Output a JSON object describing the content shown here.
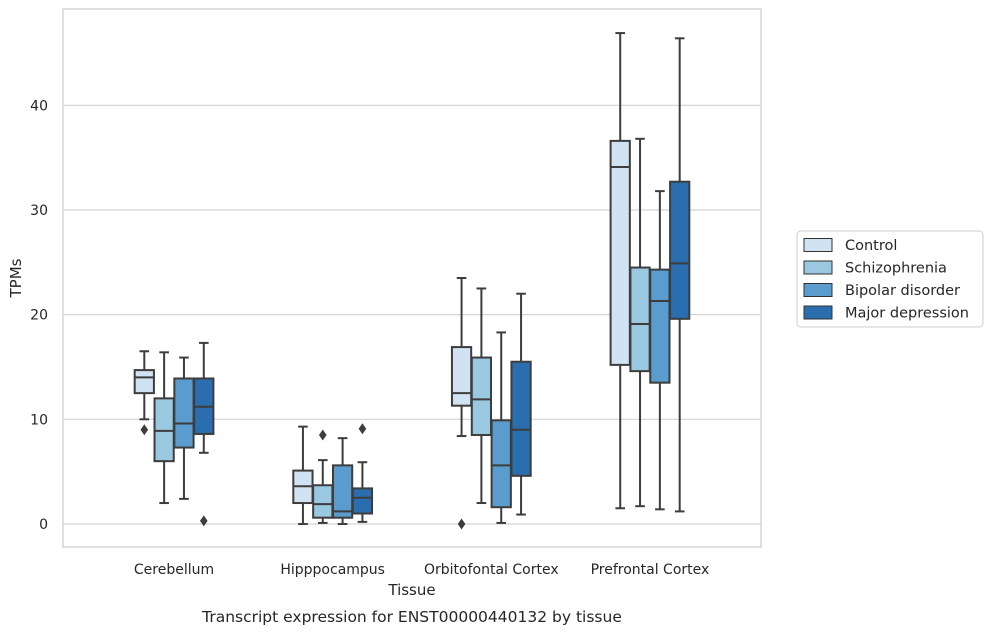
{
  "chart_data": {
    "type": "box",
    "caption": "Transcript expression for ENST00000440132 by tissue",
    "xlabel": "Tissue",
    "ylabel": "TPMs",
    "ylim": [
      -2.2,
      49.2
    ],
    "yticks": [
      0,
      10,
      20,
      30,
      40
    ],
    "grid": "horizontal",
    "legend_position": "right-outside",
    "categories": [
      "Cerebellum",
      "Hipppocampus",
      "Orbitofontal Cortex",
      "Prefrontal Cortex"
    ],
    "series": [
      {
        "name": "Control",
        "color": "#d1e2f2",
        "boxes": [
          {
            "whisker_low": 10.0,
            "q1": 12.5,
            "median": 14.0,
            "q3": 14.7,
            "whisker_high": 16.5,
            "outliers": [
              9.0
            ]
          },
          {
            "whisker_low": 0.0,
            "q1": 2.0,
            "median": 3.6,
            "q3": 5.1,
            "whisker_high": 9.3,
            "outliers": []
          },
          {
            "whisker_low": 8.4,
            "q1": 11.3,
            "median": 12.5,
            "q3": 16.9,
            "whisker_high": 23.5,
            "outliers": [
              0.0
            ]
          },
          {
            "whisker_low": 1.5,
            "q1": 15.2,
            "median": 34.1,
            "q3": 36.6,
            "whisker_high": 46.9,
            "outliers": []
          }
        ]
      },
      {
        "name": "Schizophrenia",
        "color": "#9ac8e0",
        "boxes": [
          {
            "whisker_low": 2.0,
            "q1": 6.0,
            "median": 8.9,
            "q3": 12.0,
            "whisker_high": 16.4,
            "outliers": []
          },
          {
            "whisker_low": 0.1,
            "q1": 0.6,
            "median": 1.9,
            "q3": 3.7,
            "whisker_high": 6.1,
            "outliers": [
              8.5
            ]
          },
          {
            "whisker_low": 2.0,
            "q1": 8.5,
            "median": 11.9,
            "q3": 15.9,
            "whisker_high": 22.5,
            "outliers": []
          },
          {
            "whisker_low": 1.7,
            "q1": 14.6,
            "median": 19.1,
            "q3": 24.5,
            "whisker_high": 36.8,
            "outliers": []
          }
        ]
      },
      {
        "name": "Bipolar disorder",
        "color": "#5a9cce",
        "boxes": [
          {
            "whisker_low": 2.4,
            "q1": 7.3,
            "median": 9.6,
            "q3": 13.9,
            "whisker_high": 15.9,
            "outliers": []
          },
          {
            "whisker_low": 0.0,
            "q1": 0.6,
            "median": 1.2,
            "q3": 5.6,
            "whisker_high": 8.2,
            "outliers": []
          },
          {
            "whisker_low": 0.1,
            "q1": 1.6,
            "median": 5.6,
            "q3": 9.9,
            "whisker_high": 18.3,
            "outliers": []
          },
          {
            "whisker_low": 1.4,
            "q1": 13.5,
            "median": 21.3,
            "q3": 24.3,
            "whisker_high": 31.8,
            "outliers": []
          }
        ]
      },
      {
        "name": "Major depression",
        "color": "#2a6eb0",
        "boxes": [
          {
            "whisker_low": 6.8,
            "q1": 8.6,
            "median": 11.2,
            "q3": 13.9,
            "whisker_high": 17.3,
            "outliers": [
              0.3
            ]
          },
          {
            "whisker_low": 0.2,
            "q1": 1.0,
            "median": 2.5,
            "q3": 3.4,
            "whisker_high": 5.9,
            "outliers": [
              9.1
            ]
          },
          {
            "whisker_low": 0.9,
            "q1": 4.6,
            "median": 9.0,
            "q3": 15.5,
            "whisker_high": 22.0,
            "outliers": []
          },
          {
            "whisker_low": 1.2,
            "q1": 19.6,
            "median": 24.9,
            "q3": 32.7,
            "whisker_high": 46.4,
            "outliers": []
          }
        ]
      }
    ]
  }
}
